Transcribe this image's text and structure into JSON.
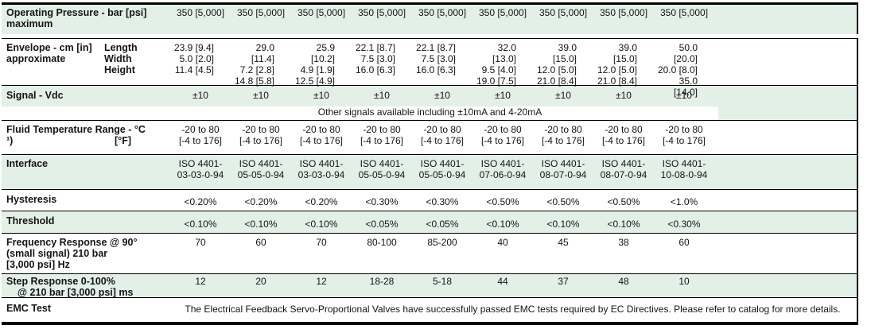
{
  "table": {
    "row_highlight_color": "#e3f0e8",
    "border_color": "#000000",
    "rows": [
      {
        "id": "operating-pressure",
        "label_lines": [
          "Operating Pressure - bar [psi]",
          "maximum"
        ],
        "highlight": true,
        "cells": [
          [
            "350 [5,000]"
          ],
          [
            "350 [5,000]"
          ],
          [
            "350 [5,000]"
          ],
          [
            "350 [5,000]"
          ],
          [
            "350 [5,000]"
          ],
          [
            "350 [5,000]"
          ],
          [
            "350 [5,000]"
          ],
          [
            "350 [5,000]"
          ],
          [
            "350 [5,000]"
          ]
        ]
      },
      {
        "id": "envelope",
        "label_lines": [
          "Envelope - cm [in]",
          "approximate"
        ],
        "sub_labels": [
          "Length",
          "Width",
          "Height"
        ],
        "highlight": false,
        "cells": [
          [
            "23.9 [9.4]",
            "5.0 [2.0]",
            "11.4 [4.5]"
          ],
          [
            "29.0 [11.4]",
            "7.2 [2.8]",
            "14.8 [5.8]"
          ],
          [
            "25.9 [10.2]",
            "4.9 [1.9]",
            "12.5 [4.9]"
          ],
          [
            "22.1 [8.7]",
            "7.5 [3.0]",
            "16.0 [6.3]"
          ],
          [
            "22.1 [8.7]",
            "7.5 [3.0]",
            "16.0 [6.3]"
          ],
          [
            "32.0 [13.0]",
            "9.5 [4.0]",
            "19.0 [7.5]"
          ],
          [
            "39.0 [15.0]",
            "12.0 [5.0]",
            "21.0 [8.4]"
          ],
          [
            "39.0 [15.0]",
            "12.0 [5.0]",
            "21.0 [8.4]"
          ],
          [
            "50.0 [20.0]",
            "20.0 [8.0]",
            "35.0 [14.0]"
          ]
        ]
      },
      {
        "id": "signal",
        "label_lines": [
          "Signal - Vdc"
        ],
        "highlight": true,
        "cells": [
          [
            "±10"
          ],
          [
            "±10"
          ],
          [
            "±10"
          ],
          [
            "±10"
          ],
          [
            "±10"
          ],
          [
            "±10"
          ],
          [
            "±10"
          ],
          [
            "±10"
          ],
          [
            "±10"
          ]
        ],
        "note": "Other signals available including ±10mA and 4-20mA"
      },
      {
        "id": "fluid-temperature",
        "label_lines": [
          "Fluid Temperature Range - °C",
          "¹)"
        ],
        "unit_label": "[°F]",
        "highlight": false,
        "cells": [
          [
            "-20 to 80",
            "[-4 to 176]"
          ],
          [
            "-20 to 80",
            "[-4 to 176]"
          ],
          [
            "-20 to 80",
            "[-4 to 176]"
          ],
          [
            "-20 to 80",
            "[-4 to 176]"
          ],
          [
            "-20 to 80",
            "[-4 to 176]"
          ],
          [
            "-20 to 80",
            "[-4 to 176]"
          ],
          [
            "-20 to 80",
            "[-4 to 176]"
          ],
          [
            "-20 to 80",
            "[-4 to 176]"
          ],
          [
            "-20 to 80",
            "[-4 to 176]"
          ]
        ]
      },
      {
        "id": "interface",
        "label_lines": [
          "Interface"
        ],
        "highlight": true,
        "cells": [
          [
            "ISO 4401-",
            "03-03-0-94"
          ],
          [
            "ISO 4401-",
            "05-05-0-94"
          ],
          [
            "ISO 4401-",
            "03-03-0-94"
          ],
          [
            "ISO 4401-",
            "05-05-0-94"
          ],
          [
            "ISO 4401-",
            "05-05-0-94"
          ],
          [
            "ISO 4401-",
            "07-06-0-94"
          ],
          [
            "ISO 4401-",
            "08-07-0-94"
          ],
          [
            "ISO 4401-",
            "08-07-0-94"
          ],
          [
            "ISO 4401-",
            "10-08-0-94"
          ]
        ]
      },
      {
        "id": "hysteresis",
        "label_lines": [
          "Hysteresis"
        ],
        "highlight": false,
        "cells": [
          [
            "<0.20%"
          ],
          [
            "<0.20%"
          ],
          [
            "<0.20%"
          ],
          [
            "<0.30%"
          ],
          [
            "<0.30%"
          ],
          [
            "<0.50%"
          ],
          [
            "<0.50%"
          ],
          [
            "<0.50%"
          ],
          [
            "<1.0%"
          ]
        ]
      },
      {
        "id": "threshold",
        "label_lines": [
          "Threshold"
        ],
        "highlight": true,
        "cells": [
          [
            "<0.10%"
          ],
          [
            "<0.10%"
          ],
          [
            "<0.10%"
          ],
          [
            "<0.05%"
          ],
          [
            "<0.05%"
          ],
          [
            "<0.10%"
          ],
          [
            "<0.10%"
          ],
          [
            "<0.10%"
          ],
          [
            "<0.30%"
          ]
        ]
      },
      {
        "id": "frequency-response",
        "label_lines": [
          "Frequency Response @ 90°",
          "(small signal) 210 bar",
          "[3,000 psi] Hz"
        ],
        "highlight": false,
        "cells": [
          [
            "70"
          ],
          [
            "60"
          ],
          [
            "70"
          ],
          [
            "80-100"
          ],
          [
            "85-200"
          ],
          [
            "40"
          ],
          [
            "45"
          ],
          [
            "38"
          ],
          [
            "60"
          ]
        ]
      },
      {
        "id": "step-response",
        "label_lines": [
          "Step Response 0-100%",
          "    @ 210 bar [3,000 psi] ms"
        ],
        "highlight": true,
        "cells": [
          [
            "12"
          ],
          [
            "20"
          ],
          [
            "12"
          ],
          [
            "18-28"
          ],
          [
            "5-18"
          ],
          [
            "44"
          ],
          [
            "37"
          ],
          [
            "48"
          ],
          [
            "10"
          ]
        ]
      },
      {
        "id": "emc-test",
        "label_lines": [
          "EMC Test"
        ],
        "highlight": false,
        "span_text": "The Electrical Feedback Servo-Proportional Valves have successfully passed EMC tests required by EC Directives. Please refer to catalog for more details."
      }
    ]
  }
}
